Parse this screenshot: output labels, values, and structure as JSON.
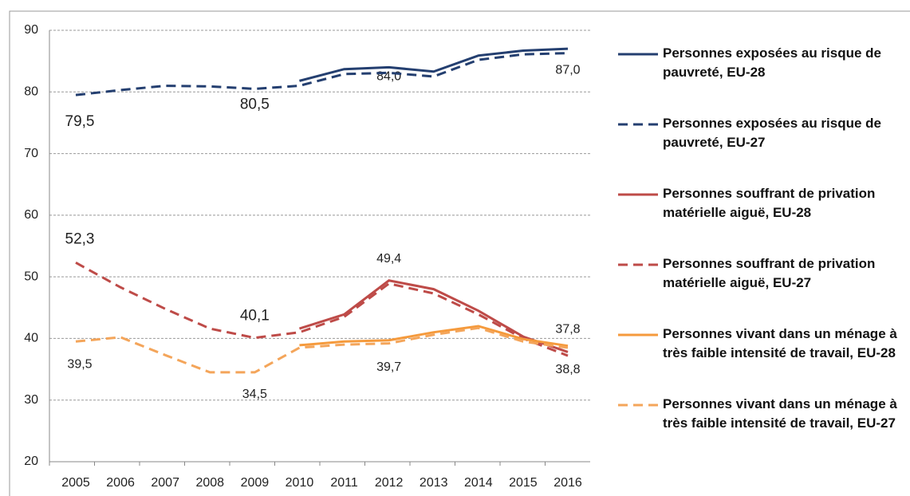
{
  "chart_data": {
    "type": "line",
    "categories": [
      "2005",
      "2006",
      "2007",
      "2008",
      "2009",
      "2010",
      "2011",
      "2012",
      "2013",
      "2014",
      "2015",
      "2016"
    ],
    "series": [
      {
        "name": "Personnes exposées au risque de pauvreté, EU-28",
        "color": "#243f70",
        "dash": false,
        "values": [
          null,
          null,
          null,
          null,
          null,
          81.8,
          83.7,
          84.0,
          83.3,
          85.9,
          86.7,
          87.0
        ],
        "value_labels": [
          null,
          null,
          null,
          null,
          null,
          null,
          null,
          "84,0",
          null,
          null,
          null,
          "87,0"
        ]
      },
      {
        "name": "Personnes exposées au risque de pauvreté, EU-27",
        "color": "#243f70",
        "dash": true,
        "values": [
          79.5,
          80.3,
          81.0,
          80.9,
          80.5,
          81.0,
          82.9,
          83.1,
          82.5,
          85.2,
          86.1,
          86.3
        ],
        "value_labels": [
          "79,5",
          null,
          null,
          null,
          "80,5",
          null,
          null,
          null,
          null,
          null,
          null,
          null
        ]
      },
      {
        "name": "Personnes souffrant de privation matérielle aiguë, EU-28",
        "color": "#be4b48",
        "dash": false,
        "values": [
          null,
          null,
          null,
          null,
          null,
          41.6,
          43.9,
          49.4,
          48.0,
          44.5,
          40.3,
          37.8
        ],
        "value_labels": [
          null,
          null,
          null,
          null,
          null,
          null,
          null,
          "49,4",
          null,
          null,
          null,
          "37,8"
        ]
      },
      {
        "name": "Personnes souffrant de privation matérielle aiguë, EU-27",
        "color": "#be4b48",
        "dash": true,
        "values": [
          52.3,
          48.3,
          44.8,
          41.6,
          40.1,
          41.0,
          43.5,
          48.9,
          47.3,
          43.9,
          40.0,
          37.2
        ],
        "value_labels": [
          "52,3",
          null,
          null,
          null,
          "40,1",
          null,
          null,
          null,
          null,
          null,
          null,
          null
        ]
      },
      {
        "name": "Personnes vivant dans un ménage à très faible intensité de travail, EU-28",
        "color": "#f59a3c",
        "dash": false,
        "values": [
          null,
          null,
          null,
          null,
          null,
          38.9,
          39.5,
          39.7,
          41.0,
          42.0,
          39.9,
          38.8
        ],
        "value_labels": [
          null,
          null,
          null,
          null,
          null,
          null,
          null,
          "39,7",
          null,
          null,
          null,
          "38,8"
        ]
      },
      {
        "name": "Personnes vivant dans un ménage à très faible intensité de travail, EU-27",
        "color": "#f4a55a",
        "dash": true,
        "values": [
          39.5,
          40.2,
          37.3,
          34.5,
          34.5,
          38.5,
          39.0,
          39.2,
          40.6,
          41.7,
          39.5,
          38.5
        ],
        "value_labels": [
          "39,5",
          null,
          null,
          null,
          "34,5",
          null,
          null,
          null,
          null,
          null,
          null,
          null
        ]
      }
    ],
    "ylim": [
      20,
      90
    ],
    "yticks": [
      20,
      30,
      40,
      50,
      60,
      70,
      80,
      90
    ],
    "grid": true,
    "legend": "right"
  }
}
